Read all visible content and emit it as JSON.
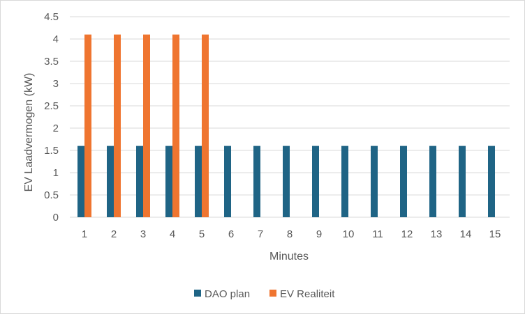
{
  "chart_data": {
    "type": "bar",
    "title": "",
    "xlabel": "Minutes",
    "ylabel": "EV Laadvermogen (kW)",
    "categories": [
      "1",
      "2",
      "3",
      "4",
      "5",
      "6",
      "7",
      "8",
      "9",
      "10",
      "11",
      "12",
      "13",
      "14",
      "15"
    ],
    "ylim": [
      0,
      4.5
    ],
    "yticks": [
      "0",
      "0.5",
      "1",
      "1.5",
      "2",
      "2.5",
      "3",
      "3.5",
      "4",
      "4.5"
    ],
    "grid": true,
    "legend_position": "bottom",
    "series": [
      {
        "name": "DAO plan",
        "color": "#1f6485",
        "values": [
          1.6,
          1.6,
          1.6,
          1.6,
          1.6,
          1.6,
          1.6,
          1.6,
          1.6,
          1.6,
          1.6,
          1.6,
          1.6,
          1.6,
          1.6
        ]
      },
      {
        "name": "EV Realiteit",
        "color": "#ef7530",
        "values": [
          4.1,
          4.1,
          4.1,
          4.1,
          4.1,
          0,
          0,
          0,
          0,
          0,
          0,
          0,
          0,
          0,
          0
        ]
      }
    ]
  }
}
